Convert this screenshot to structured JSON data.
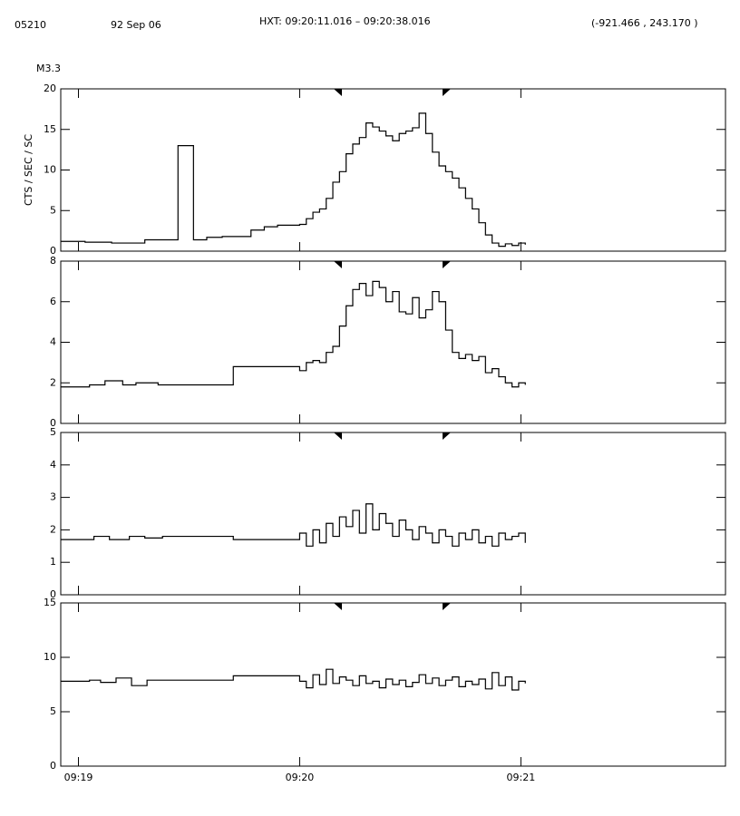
{
  "header": {
    "id": "05210",
    "date": "92 Sep 06",
    "hxt": "HXT: 09:20:11.016 – 09:20:38.016",
    "position": "(-921.466 , 243.170 )",
    "class": "M3.3"
  },
  "x_axis": {
    "xlim": [
      -0.08,
      2.925
    ],
    "xticks": [
      {
        "value": 0,
        "label": "09:19"
      },
      {
        "value": 1,
        "label": "09:20"
      },
      {
        "value": 2,
        "label": "09:21"
      }
    ]
  },
  "chart_data": [
    {
      "type": "line",
      "ylabel": "CTS / SEC / SC",
      "ylim": [
        0,
        20
      ],
      "yticks": [
        0,
        5,
        10,
        15,
        20
      ],
      "color": "#000000",
      "x": [
        -0.08,
        0.03,
        0.15,
        0.3,
        0.45,
        0.52,
        0.58,
        0.65,
        0.78,
        0.84,
        0.9,
        1,
        1.03,
        1.06,
        1.09,
        1.12,
        1.15,
        1.18,
        1.21,
        1.24,
        1.27,
        1.3,
        1.33,
        1.36,
        1.39,
        1.42,
        1.45,
        1.48,
        1.51,
        1.54,
        1.57,
        1.6,
        1.63,
        1.66,
        1.69,
        1.72,
        1.75,
        1.78,
        1.81,
        1.84,
        1.87,
        1.9,
        1.93,
        1.96,
        1.99,
        2.02
      ],
      "values": [
        1.2,
        1.1,
        1.0,
        1.4,
        13,
        1.4,
        1.7,
        1.8,
        2.6,
        3.0,
        3.2,
        3.3,
        4.0,
        4.8,
        5.2,
        6.5,
        8.5,
        9.8,
        12,
        13.2,
        14,
        15.8,
        15.3,
        14.8,
        14.2,
        13.6,
        14.5,
        14.8,
        15.2,
        17,
        14.5,
        12.2,
        10.5,
        9.8,
        9,
        7.8,
        6.5,
        5.2,
        3.5,
        2.0,
        1.0,
        0.6,
        0.9,
        0.7,
        1.0,
        0.8
      ]
    },
    {
      "type": "line",
      "ylim": [
        0,
        8
      ],
      "yticks": [
        0,
        2,
        4,
        6,
        8
      ],
      "color": "#000000",
      "x": [
        -0.08,
        0.05,
        0.12,
        0.2,
        0.26,
        0.36,
        0.7,
        1,
        1.03,
        1.06,
        1.09,
        1.12,
        1.15,
        1.18,
        1.21,
        1.24,
        1.27,
        1.3,
        1.33,
        1.36,
        1.39,
        1.42,
        1.45,
        1.48,
        1.51,
        1.54,
        1.57,
        1.6,
        1.63,
        1.66,
        1.69,
        1.72,
        1.75,
        1.78,
        1.81,
        1.84,
        1.87,
        1.9,
        1.93,
        1.96,
        1.99,
        2.02
      ],
      "values": [
        1.8,
        1.9,
        2.1,
        1.9,
        2.0,
        1.9,
        2.8,
        2.6,
        3.0,
        3.1,
        3.0,
        3.5,
        3.8,
        4.8,
        5.8,
        6.6,
        6.9,
        6.3,
        7.0,
        6.7,
        6.0,
        6.5,
        5.5,
        5.4,
        6.2,
        5.2,
        5.6,
        6.5,
        6.0,
        4.6,
        3.5,
        3.2,
        3.4,
        3.1,
        3.3,
        2.5,
        2.7,
        2.3,
        2.0,
        1.8,
        2.0,
        1.9
      ]
    },
    {
      "type": "line",
      "ylim": [
        0,
        5
      ],
      "yticks": [
        0,
        1,
        2,
        3,
        4,
        5
      ],
      "color": "#000000",
      "x": [
        -0.08,
        0.07,
        0.14,
        0.23,
        0.3,
        0.38,
        0.7,
        1,
        1.03,
        1.06,
        1.09,
        1.12,
        1.15,
        1.18,
        1.21,
        1.24,
        1.27,
        1.3,
        1.33,
        1.36,
        1.39,
        1.42,
        1.45,
        1.48,
        1.51,
        1.54,
        1.57,
        1.6,
        1.63,
        1.66,
        1.69,
        1.72,
        1.75,
        1.78,
        1.81,
        1.84,
        1.87,
        1.9,
        1.93,
        1.96,
        1.99,
        2.02
      ],
      "values": [
        1.7,
        1.8,
        1.7,
        1.8,
        1.75,
        1.8,
        1.7,
        1.9,
        1.5,
        2.0,
        1.6,
        2.2,
        1.8,
        2.4,
        2.1,
        2.6,
        1.9,
        2.8,
        2.0,
        2.5,
        2.2,
        1.8,
        2.3,
        2.0,
        1.7,
        2.1,
        1.9,
        1.6,
        2.0,
        1.8,
        1.5,
        1.9,
        1.7,
        2.0,
        1.6,
        1.8,
        1.5,
        1.9,
        1.7,
        1.8,
        1.9,
        1.6
      ]
    },
    {
      "type": "line",
      "ylim": [
        0,
        15
      ],
      "yticks": [
        0,
        5,
        10,
        15
      ],
      "color": "#000000",
      "x": [
        -0.08,
        0.05,
        0.1,
        0.17,
        0.24,
        0.31,
        0.7,
        1,
        1.03,
        1.06,
        1.09,
        1.12,
        1.15,
        1.18,
        1.21,
        1.24,
        1.27,
        1.3,
        1.33,
        1.36,
        1.39,
        1.42,
        1.45,
        1.48,
        1.51,
        1.54,
        1.57,
        1.6,
        1.63,
        1.66,
        1.69,
        1.72,
        1.75,
        1.78,
        1.81,
        1.84,
        1.87,
        1.9,
        1.93,
        1.96,
        1.99,
        2.02
      ],
      "values": [
        7.8,
        7.9,
        7.7,
        8.1,
        7.4,
        7.9,
        8.3,
        7.8,
        7.2,
        8.4,
        7.5,
        8.9,
        7.6,
        8.2,
        7.9,
        7.4,
        8.3,
        7.6,
        7.8,
        7.2,
        8.0,
        7.5,
        7.9,
        7.3,
        7.7,
        8.4,
        7.6,
        8.1,
        7.4,
        7.9,
        8.2,
        7.3,
        7.8,
        7.5,
        8.0,
        7.1,
        8.6,
        7.4,
        8.2,
        7.0,
        7.8,
        7.6
      ]
    }
  ]
}
